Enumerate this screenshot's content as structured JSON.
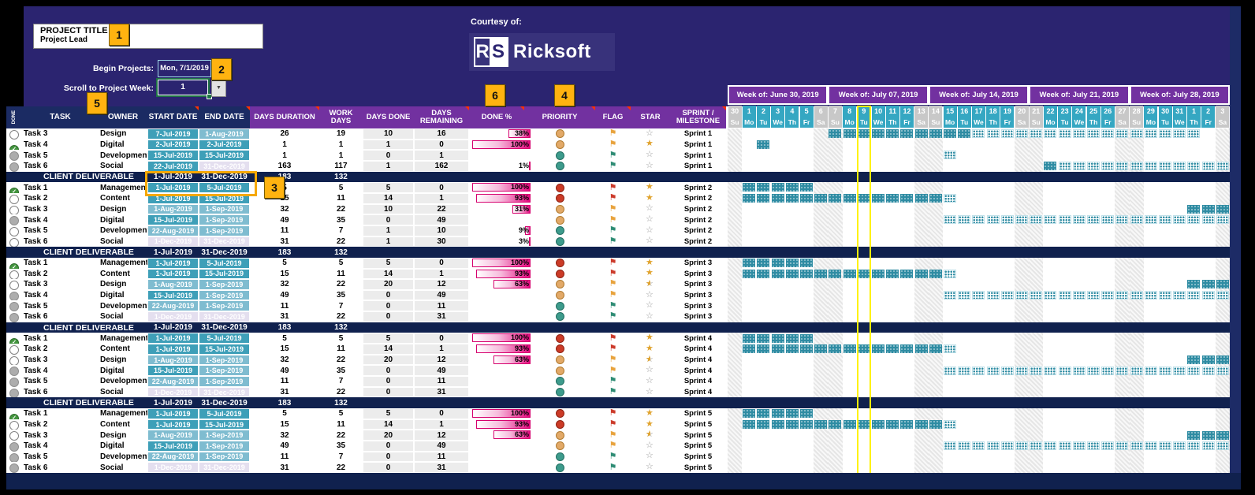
{
  "banner": {
    "project_title": "PROJECT TITLE",
    "project_lead": "Project Lead",
    "begin_label": "Begin Projects:",
    "begin_value": "Mon, 7/1/2019",
    "scroll_label": "Scroll to Project Week:",
    "scroll_value": "1",
    "courtesy": "Courtesy of:",
    "logo_r": "R",
    "logo_s": "S",
    "logo_name": "Ricksoft"
  },
  "badges": {
    "b1": "1",
    "b2": "2",
    "b3": "3",
    "b4": "4",
    "b5": "5",
    "b6": "6"
  },
  "table_headers": {
    "done_rotated": "DONE",
    "task": "TASK",
    "owner": "OWNER",
    "start": "START DATE",
    "end": "END DATE",
    "duration": "DAYS DURATION",
    "work": "WORK DAYS",
    "days_done": "DAYS DONE",
    "remaining": "DAYS REMAINING",
    "pct": "DONE %",
    "priority": "PRIORITY",
    "flag": "FLAG",
    "star": "STAR",
    "sprint": "SPRINT / MILESTONE"
  },
  "calendar": {
    "weeks": [
      "Week of: June 30, 2019",
      "Week of: July 07, 2019",
      "Week of: July 14, 2019",
      "Week of: July 21, 2019",
      "Week of: July 28, 2019"
    ],
    "day_numbers": [
      30,
      1,
      2,
      3,
      4,
      5,
      6,
      7,
      8,
      9,
      10,
      11,
      12,
      13,
      14,
      15,
      16,
      17,
      18,
      19,
      20,
      21,
      22,
      23,
      24,
      25,
      26,
      27,
      28,
      29,
      30,
      31,
      1,
      2,
      3
    ],
    "day_names_pattern": [
      "Su",
      "Mo",
      "Tu",
      "We",
      "Th",
      "Fr",
      "Sa"
    ],
    "weekend_indices": [
      0,
      6,
      7,
      13,
      14,
      20,
      21,
      27,
      28,
      34
    ],
    "today_index": 9
  },
  "colors": {
    "banner_navy": "#2B2470",
    "header_navy": "#1B2B63",
    "deliverable_navy": "#10214E",
    "purple": "#7231A0",
    "teal_day": "#35A7C2",
    "date_teal": "#3E9FB8",
    "date_light": "#7FBCD0",
    "date_pale": "#E4DFEF",
    "done_bar_magenta": "#E5097F",
    "gantt_teal": "#2F8CA3",
    "badge_gold": "#FFB310",
    "today_yellow": "#FFF200"
  },
  "rows": [
    {
      "t": "task",
      "status": "open",
      "task": "Task 3",
      "owner": "Design",
      "start": "7-Jul-2019",
      "ss": "teal",
      "end": "1-Aug-2019",
      "es": "light",
      "dur": "26",
      "work": "19",
      "done": "10",
      "rem": "16",
      "pctl": "38%",
      "pct": 38,
      "pri": "amber",
      "flag": "amber",
      "star": "outline",
      "sprint": "Sprint 1",
      "bar": {
        "s": 7,
        "d": 16,
        "e": 32
      }
    },
    {
      "t": "task",
      "status": "done",
      "task": "Task 4",
      "owner": "Digital",
      "start": "2-Jul-2019",
      "ss": "teal",
      "end": "2-Jul-2019",
      "es": "teal",
      "dur": "1",
      "work": "1",
      "done": "1",
      "rem": "0",
      "pctl": "100%",
      "pct": 100,
      "pri": "amber",
      "flag": "amber",
      "star": "gold",
      "sprint": "Sprint 1",
      "bar": {
        "s": 2,
        "d": 2,
        "e": 2
      }
    },
    {
      "t": "task",
      "status": "na",
      "task": "Task 5",
      "owner": "Development",
      "start": "15-Jul-2019",
      "ss": "teal",
      "end": "15-Jul-2019",
      "es": "teal",
      "dur": "1",
      "work": "1",
      "done": "0",
      "rem": "1",
      "pctl": "",
      "pct": 0,
      "pri": "green",
      "flag": "green",
      "star": "outline",
      "sprint": "Sprint 1",
      "bar": {
        "s": 15,
        "d": 14,
        "e": 15
      }
    },
    {
      "t": "task",
      "status": "na",
      "task": "Task 6",
      "owner": "Social",
      "start": "22-Jul-2019",
      "ss": "teal",
      "end": "31-Dec-2019",
      "es": "pale",
      "dur": "163",
      "work": "117",
      "done": "1",
      "rem": "162",
      "pctl": "1%",
      "pct": 1,
      "pri": "green",
      "flag": "green",
      "star": "outline",
      "sprint": "Sprint 1",
      "bar": {
        "s": 22,
        "d": 22,
        "e": 34
      }
    },
    {
      "t": "cd",
      "label": "CLIENT DELIVERABLE",
      "start": "1-Jul-2019",
      "end": "31-Dec-2019",
      "dur": "183",
      "work": "132",
      "highlight": true
    },
    {
      "t": "task",
      "status": "done",
      "task": "Task 1",
      "owner": "Management",
      "start": "1-Jul-2019",
      "ss": "teal",
      "end": "5-Jul-2019",
      "es": "teal",
      "dur": "5",
      "work": "5",
      "done": "5",
      "rem": "0",
      "pctl": "100%",
      "pct": 100,
      "pri": "red",
      "flag": "red",
      "star": "gold",
      "sprint": "Sprint 2",
      "bar": {
        "s": 1,
        "d": 5,
        "e": 5
      }
    },
    {
      "t": "task",
      "status": "open",
      "task": "Task 2",
      "owner": "Content",
      "start": "1-Jul-2019",
      "ss": "teal",
      "end": "15-Jul-2019",
      "es": "teal",
      "dur": "15",
      "work": "11",
      "done": "14",
      "rem": "1",
      "pctl": "93%",
      "pct": 93,
      "pri": "red",
      "flag": "red",
      "star": "gold",
      "sprint": "Sprint 2",
      "bar": {
        "s": 1,
        "d": 14,
        "e": 15
      }
    },
    {
      "t": "task",
      "status": "open",
      "task": "Task 3",
      "owner": "Design",
      "start": "1-Aug-2019",
      "ss": "light",
      "end": "1-Sep-2019",
      "es": "light",
      "dur": "32",
      "work": "22",
      "done": "10",
      "rem": "22",
      "pctl": "31%",
      "pct": 31,
      "pri": "amber",
      "flag": "amber",
      "star": "outline",
      "sprint": "Sprint 2",
      "bar": {
        "s": 32,
        "d": 34,
        "e": 34
      }
    },
    {
      "t": "task",
      "status": "na",
      "task": "Task 4",
      "owner": "Digital",
      "start": "15-Jul-2019",
      "ss": "teal",
      "end": "1-Sep-2019",
      "es": "light",
      "dur": "49",
      "work": "35",
      "done": "0",
      "rem": "49",
      "pctl": "",
      "pct": 0,
      "pri": "amber",
      "flag": "amber",
      "star": "outline",
      "sprint": "Sprint 2",
      "bar": {
        "s": 15,
        "d": 14,
        "e": 34
      }
    },
    {
      "t": "task",
      "status": "open",
      "task": "Task 5",
      "owner": "Development",
      "start": "22-Aug-2019",
      "ss": "light",
      "end": "1-Sep-2019",
      "es": "light",
      "dur": "11",
      "work": "7",
      "done": "1",
      "rem": "10",
      "pctl": "9%",
      "pct": 9,
      "pri": "green",
      "flag": "green",
      "star": "outline",
      "sprint": "Sprint 2",
      "bar": null
    },
    {
      "t": "task",
      "status": "open",
      "task": "Task 6",
      "owner": "Social",
      "start": "1-Dec-2019",
      "ss": "pale",
      "end": "31-Dec-2019",
      "es": "pale",
      "dur": "31",
      "work": "22",
      "done": "1",
      "rem": "30",
      "pctl": "3%",
      "pct": 3,
      "pri": "green",
      "flag": "green",
      "star": "outline",
      "sprint": "Sprint 2",
      "bar": null
    },
    {
      "t": "cd",
      "label": "CLIENT DELIVERABLE",
      "start": "1-Jul-2019",
      "end": "31-Dec-2019",
      "dur": "183",
      "work": "132",
      "highlight": false
    },
    {
      "t": "task",
      "status": "done",
      "task": "Task 1",
      "owner": "Management",
      "start": "1-Jul-2019",
      "ss": "teal",
      "end": "5-Jul-2019",
      "es": "teal",
      "dur": "5",
      "work": "5",
      "done": "5",
      "rem": "0",
      "pctl": "100%",
      "pct": 100,
      "pri": "red",
      "flag": "red",
      "star": "gold",
      "sprint": "Sprint 3",
      "bar": {
        "s": 1,
        "d": 5,
        "e": 5
      }
    },
    {
      "t": "task",
      "status": "open",
      "task": "Task 2",
      "owner": "Content",
      "start": "1-Jul-2019",
      "ss": "teal",
      "end": "15-Jul-2019",
      "es": "teal",
      "dur": "15",
      "work": "11",
      "done": "14",
      "rem": "1",
      "pctl": "93%",
      "pct": 93,
      "pri": "red",
      "flag": "red",
      "star": "gold",
      "sprint": "Sprint 3",
      "bar": {
        "s": 1,
        "d": 14,
        "e": 15
      }
    },
    {
      "t": "task",
      "status": "open",
      "task": "Task 3",
      "owner": "Design",
      "start": "1-Aug-2019",
      "ss": "light",
      "end": "1-Sep-2019",
      "es": "light",
      "dur": "32",
      "work": "22",
      "done": "20",
      "rem": "12",
      "pctl": "63%",
      "pct": 63,
      "pri": "amber",
      "flag": "amber",
      "star": "half",
      "sprint": "Sprint 3",
      "bar": {
        "s": 32,
        "d": 34,
        "e": 34
      }
    },
    {
      "t": "task",
      "status": "na",
      "task": "Task 4",
      "owner": "Digital",
      "start": "15-Jul-2019",
      "ss": "teal",
      "end": "1-Sep-2019",
      "es": "light",
      "dur": "49",
      "work": "35",
      "done": "0",
      "rem": "49",
      "pctl": "",
      "pct": 0,
      "pri": "amber",
      "flag": "amber",
      "star": "outline",
      "sprint": "Sprint 3",
      "bar": {
        "s": 15,
        "d": 14,
        "e": 34
      }
    },
    {
      "t": "task",
      "status": "na",
      "task": "Task 5",
      "owner": "Development",
      "start": "22-Aug-2019",
      "ss": "light",
      "end": "1-Sep-2019",
      "es": "light",
      "dur": "11",
      "work": "7",
      "done": "0",
      "rem": "11",
      "pctl": "",
      "pct": 0,
      "pri": "green",
      "flag": "green",
      "star": "outline",
      "sprint": "Sprint 3",
      "bar": null
    },
    {
      "t": "task",
      "status": "na",
      "task": "Task 6",
      "owner": "Social",
      "start": "1-Dec-2019",
      "ss": "pale",
      "end": "31-Dec-2019",
      "es": "pale",
      "dur": "31",
      "work": "22",
      "done": "0",
      "rem": "31",
      "pctl": "",
      "pct": 0,
      "pri": "green",
      "flag": "green",
      "star": "outline",
      "sprint": "Sprint 3",
      "bar": null
    },
    {
      "t": "cd",
      "label": "CLIENT DELIVERABLE",
      "start": "1-Jul-2019",
      "end": "31-Dec-2019",
      "dur": "183",
      "work": "132",
      "highlight": false
    },
    {
      "t": "task",
      "status": "done",
      "task": "Task 1",
      "owner": "Management",
      "start": "1-Jul-2019",
      "ss": "teal",
      "end": "5-Jul-2019",
      "es": "teal",
      "dur": "5",
      "work": "5",
      "done": "5",
      "rem": "0",
      "pctl": "100%",
      "pct": 100,
      "pri": "red",
      "flag": "red",
      "star": "gold",
      "sprint": "Sprint 4",
      "bar": {
        "s": 1,
        "d": 5,
        "e": 5
      }
    },
    {
      "t": "task",
      "status": "open",
      "task": "Task 2",
      "owner": "Content",
      "start": "1-Jul-2019",
      "ss": "teal",
      "end": "15-Jul-2019",
      "es": "teal",
      "dur": "15",
      "work": "11",
      "done": "14",
      "rem": "1",
      "pctl": "93%",
      "pct": 93,
      "pri": "red",
      "flag": "red",
      "star": "gold",
      "sprint": "Sprint 4",
      "bar": {
        "s": 1,
        "d": 14,
        "e": 15
      }
    },
    {
      "t": "task",
      "status": "open",
      "task": "Task 3",
      "owner": "Design",
      "start": "1-Aug-2019",
      "ss": "light",
      "end": "1-Sep-2019",
      "es": "light",
      "dur": "32",
      "work": "22",
      "done": "20",
      "rem": "12",
      "pctl": "63%",
      "pct": 63,
      "pri": "amber",
      "flag": "amber",
      "star": "half",
      "sprint": "Sprint 4",
      "bar": {
        "s": 32,
        "d": 34,
        "e": 34
      }
    },
    {
      "t": "task",
      "status": "na",
      "task": "Task 4",
      "owner": "Digital",
      "start": "15-Jul-2019",
      "ss": "teal",
      "end": "1-Sep-2019",
      "es": "light",
      "dur": "49",
      "work": "35",
      "done": "0",
      "rem": "49",
      "pctl": "",
      "pct": 0,
      "pri": "amber",
      "flag": "amber",
      "star": "outline",
      "sprint": "Sprint 4",
      "bar": {
        "s": 15,
        "d": 14,
        "e": 34
      }
    },
    {
      "t": "task",
      "status": "na",
      "task": "Task 5",
      "owner": "Development",
      "start": "22-Aug-2019",
      "ss": "light",
      "end": "1-Sep-2019",
      "es": "light",
      "dur": "11",
      "work": "7",
      "done": "0",
      "rem": "11",
      "pctl": "",
      "pct": 0,
      "pri": "green",
      "flag": "green",
      "star": "outline",
      "sprint": "Sprint 4",
      "bar": null
    },
    {
      "t": "task",
      "status": "na",
      "task": "Task 6",
      "owner": "Social",
      "start": "1-Dec-2019",
      "ss": "pale",
      "end": "31-Dec-2019",
      "es": "pale",
      "dur": "31",
      "work": "22",
      "done": "0",
      "rem": "31",
      "pctl": "",
      "pct": 0,
      "pri": "green",
      "flag": "green",
      "star": "outline",
      "sprint": "Sprint 4",
      "bar": null
    },
    {
      "t": "cd",
      "label": "CLIENT DELIVERABLE",
      "start": "1-Jul-2019",
      "end": "31-Dec-2019",
      "dur": "183",
      "work": "132",
      "highlight": false
    },
    {
      "t": "task",
      "status": "done",
      "task": "Task 1",
      "owner": "Management",
      "start": "1-Jul-2019",
      "ss": "teal",
      "end": "5-Jul-2019",
      "es": "teal",
      "dur": "5",
      "work": "5",
      "done": "5",
      "rem": "0",
      "pctl": "100%",
      "pct": 100,
      "pri": "red",
      "flag": "red",
      "star": "gold",
      "sprint": "Sprint 5",
      "bar": {
        "s": 1,
        "d": 5,
        "e": 5
      }
    },
    {
      "t": "task",
      "status": "open",
      "task": "Task 2",
      "owner": "Content",
      "start": "1-Jul-2019",
      "ss": "teal",
      "end": "15-Jul-2019",
      "es": "teal",
      "dur": "15",
      "work": "11",
      "done": "14",
      "rem": "1",
      "pctl": "93%",
      "pct": 93,
      "pri": "red",
      "flag": "red",
      "star": "gold",
      "sprint": "Sprint 5",
      "bar": {
        "s": 1,
        "d": 14,
        "e": 15
      }
    },
    {
      "t": "task",
      "status": "open",
      "task": "Task 3",
      "owner": "Design",
      "start": "1-Aug-2019",
      "ss": "light",
      "end": "1-Sep-2019",
      "es": "light",
      "dur": "32",
      "work": "22",
      "done": "20",
      "rem": "12",
      "pctl": "63%",
      "pct": 63,
      "pri": "amber",
      "flag": "amber",
      "star": "half",
      "sprint": "Sprint 5",
      "bar": {
        "s": 32,
        "d": 34,
        "e": 34
      }
    },
    {
      "t": "task",
      "status": "na",
      "task": "Task 4",
      "owner": "Digital",
      "start": "15-Jul-2019",
      "ss": "teal",
      "end": "1-Sep-2019",
      "es": "light",
      "dur": "49",
      "work": "35",
      "done": "0",
      "rem": "49",
      "pctl": "",
      "pct": 0,
      "pri": "amber",
      "flag": "amber",
      "star": "outline",
      "sprint": "Sprint 5",
      "bar": {
        "s": 15,
        "d": 14,
        "e": 34
      }
    },
    {
      "t": "task",
      "status": "na",
      "task": "Task 5",
      "owner": "Development",
      "start": "22-Aug-2019",
      "ss": "light",
      "end": "1-Sep-2019",
      "es": "light",
      "dur": "11",
      "work": "7",
      "done": "0",
      "rem": "11",
      "pctl": "",
      "pct": 0,
      "pri": "green",
      "flag": "green",
      "star": "outline",
      "sprint": "Sprint 5",
      "bar": null
    },
    {
      "t": "task",
      "status": "na",
      "task": "Task 6",
      "owner": "Social",
      "start": "1-Dec-2019",
      "ss": "pale",
      "end": "31-Dec-2019",
      "es": "pale",
      "dur": "31",
      "work": "22",
      "done": "0",
      "rem": "31",
      "pctl": "",
      "pct": 0,
      "pri": "green",
      "flag": "green",
      "star": "outline",
      "sprint": "Sprint 5",
      "bar": null
    }
  ]
}
